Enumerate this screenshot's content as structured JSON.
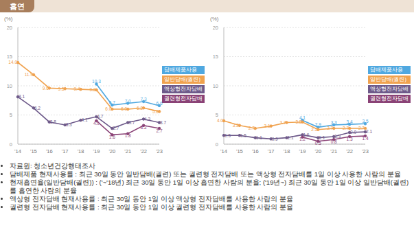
{
  "header": {
    "title": "흡연"
  },
  "chart_data": [
    {
      "type": "line",
      "categories": [
        "'14",
        "'15",
        "'16",
        "'17",
        "'18",
        "'19",
        "'20",
        "'21",
        "'22",
        "'23"
      ],
      "ylim": [
        0,
        20
      ],
      "yticks": [
        0,
        5,
        10,
        15,
        20
      ],
      "y_label": "(%)",
      "grid": true,
      "data_labels": true,
      "series": [
        {
          "name": "담배제품사용",
          "color": "#4fa8e0",
          "values": [
            null,
            null,
            null,
            null,
            null,
            10.3,
            6.7,
            7.0,
            7.3,
            6.6
          ],
          "value_labels": [
            null,
            null,
            null,
            null,
            null,
            "10.3",
            "6.7",
            "7.0",
            "7.3",
            "6.6"
          ]
        },
        {
          "name": "일반담배(궐련)",
          "color": "#f0a24e",
          "values": [
            14.0,
            11.9,
            9.6,
            9.5,
            9.4,
            9.3,
            6.0,
            6.0,
            6.2,
            5.6
          ],
          "value_labels": [
            "14.0",
            "11.9",
            "9.6",
            "9.5",
            "9.4",
            "9.3",
            "6.0",
            "6.0",
            "6.2",
            "5.6"
          ]
        },
        {
          "name": "액상형전자담배",
          "color": "#6e5a8a",
          "values": [
            8.1,
            6.2,
            3.8,
            3.3,
            4.1,
            4.7,
            2.7,
            3.7,
            4.3,
            3.7
          ],
          "value_labels": [
            "8.1",
            "6.2",
            "3.8",
            "3.3",
            "4.1",
            "4.7",
            "2.7",
            "3.7",
            "4.3",
            "3.7"
          ]
        },
        {
          "name": "궐련형전자담배",
          "color": "#8a4276",
          "values": [
            null,
            null,
            null,
            null,
            null,
            4.0,
            1.6,
            1.8,
            3.2,
            2.7
          ],
          "value_labels": [
            null,
            null,
            null,
            null,
            null,
            "4.0",
            "1.6",
            "1.8",
            "3.2",
            "2.7"
          ]
        }
      ]
    },
    {
      "type": "line",
      "categories": [
        "'14",
        "'15",
        "'16",
        "'17",
        "'18",
        "'19",
        "'20",
        "'21",
        "'22",
        "'23"
      ],
      "ylim": [
        0,
        20
      ],
      "yticks": [
        0,
        5,
        10,
        15,
        20
      ],
      "y_label": "(%)",
      "grid": true,
      "data_labels": true,
      "series": [
        {
          "name": "담배제품사용",
          "color": "#4fa8e0",
          "values": [
            null,
            null,
            null,
            null,
            null,
            4.1,
            2.9,
            3.3,
            3.4,
            3.5
          ],
          "value_labels": [
            null,
            null,
            null,
            null,
            null,
            "4.1",
            "2.9",
            "3.3",
            "3.4",
            "3.5"
          ]
        },
        {
          "name": "일반담배(궐련)",
          "color": "#f0a24e",
          "values": [
            4.0,
            3.2,
            2.7,
            3.1,
            3.7,
            3.8,
            2.5,
            2.7,
            2.7,
            2.7
          ],
          "value_labels": [
            "4.0",
            "3.2",
            "2.7",
            "3.1",
            "3.7",
            "3.8",
            "2.5",
            "2.7",
            "2.7",
            "2.7"
          ]
        },
        {
          "name": "액상형전자담배",
          "color": "#6e5a8a",
          "values": [
            1.5,
            1.5,
            1.1,
            0.9,
            1.1,
            1.6,
            1.1,
            1.3,
            2.0,
            2.1
          ],
          "value_labels": [
            "1.5",
            "1.5",
            "1.1",
            "0.9",
            "1.1",
            "1.6",
            "1.1",
            "1.3",
            "2.0",
            "2.1"
          ]
        },
        {
          "name": "궐련형전자담배",
          "color": "#8a4276",
          "values": [
            null,
            null,
            null,
            null,
            null,
            1.2,
            0.5,
            0.8,
            1.3,
            1.4
          ],
          "value_labels": [
            null,
            null,
            null,
            null,
            null,
            "1.2",
            "0.5",
            "0.8",
            "1.3",
            "1.4"
          ]
        }
      ]
    }
  ],
  "notes": [
    "자료원: 청소년건강행태조사",
    "담배제품 현재사용률 : 최근 30일 동안 일반담배(궐련) 또는 궐련형 전자담배 또는 액상형 전자담배를 1일 이상 사용한 사람의 분율",
    "현재흡연율(일반담배(궐련)) : ('~'18년) 최근 30일 동안 1일 이상 흡연한 사람의 분율; ('19년~) 최근 30일 동안 1일 이상 일반담배(궐련)를 흡연한 사람의 분율",
    "액상형 전자담배 현재사용률 : 최근 30일 동안 1일 이상 액상형 전자담배를 사용한 사람의 분율",
    "궐련형 전자담배 현재사용률 : 최근 30일 동안 1일 이상 궐련형 전자담배를 사용한 사람의 분율"
  ]
}
